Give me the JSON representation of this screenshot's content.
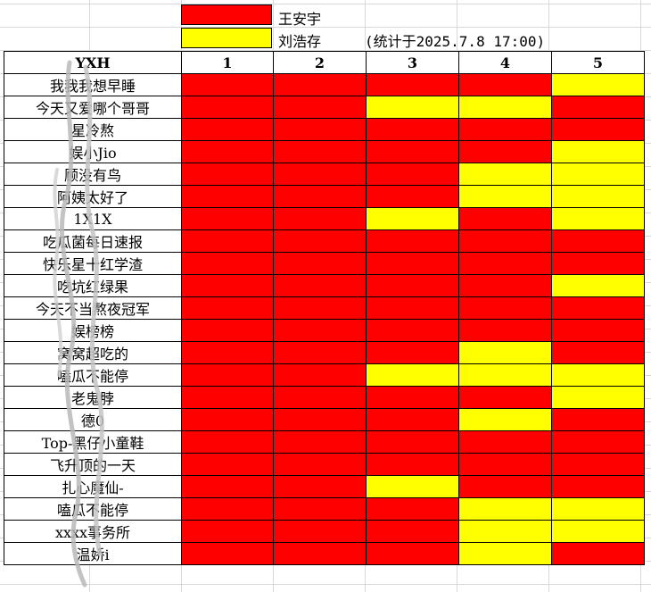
{
  "legend": [
    {
      "name": "王安宇",
      "color": "#ff0000"
    },
    {
      "name": "刘浩存",
      "color": "#ffff00"
    }
  ],
  "note": "(统计于2025.7.8 17:00)",
  "header": {
    "label": "YXH",
    "columns": [
      "1",
      "2",
      "3",
      "4",
      "5"
    ]
  },
  "colors": {
    "R": "#ff0000",
    "Y": "#ffff00"
  },
  "rows": [
    {
      "name": "我我我想早睡",
      "cells": [
        "R",
        "R",
        "R",
        "R",
        "Y"
      ]
    },
    {
      "name": "今天又爱哪个哥哥",
      "cells": [
        "R",
        "R",
        "Y",
        "Y",
        "R"
      ]
    },
    {
      "name": "星冷熬",
      "cells": [
        "R",
        "R",
        "R",
        "R",
        "R"
      ]
    },
    {
      "name": "娱小Jio",
      "cells": [
        "R",
        "R",
        "R",
        "R",
        "Y"
      ]
    },
    {
      "name": "顾没有鸟",
      "cells": [
        "R",
        "R",
        "R",
        "Y",
        "Y"
      ]
    },
    {
      "name": "阿姨太好了",
      "cells": [
        "R",
        "R",
        "R",
        "Y",
        "Y"
      ]
    },
    {
      "name": "1X1X",
      "cells": [
        "R",
        "R",
        "Y",
        "R",
        "Y"
      ]
    },
    {
      "name": "吃瓜菌每日速报",
      "cells": [
        "R",
        "R",
        "R",
        "R",
        "R"
      ]
    },
    {
      "name": "快乐星十红学渣",
      "cells": [
        "R",
        "R",
        "R",
        "R",
        "R"
      ]
    },
    {
      "name": "吃坑红绿果",
      "cells": [
        "R",
        "R",
        "R",
        "R",
        "Y"
      ]
    },
    {
      "name": "今天不当熬夜冠军",
      "cells": [
        "R",
        "R",
        "R",
        "R",
        "R"
      ]
    },
    {
      "name": "娱榜榜",
      "cells": [
        "R",
        "R",
        "R",
        "R",
        "R"
      ]
    },
    {
      "name": "窝窝超吃的",
      "cells": [
        "R",
        "R",
        "R",
        "Y",
        "R"
      ]
    },
    {
      "name": "嗑瓜不能停",
      "cells": [
        "R",
        "R",
        "Y",
        "Y",
        "Y"
      ]
    },
    {
      "name": "老鬼脖",
      "cells": [
        "R",
        "R",
        "R",
        "R",
        "Y"
      ]
    },
    {
      "name": "德0",
      "cells": [
        "R",
        "R",
        "R",
        "Y",
        "R"
      ]
    },
    {
      "name": "Top-黑仔小童鞋",
      "cells": [
        "R",
        "R",
        "R",
        "R",
        "R"
      ]
    },
    {
      "name": "飞升顶的一天",
      "cells": [
        "R",
        "R",
        "R",
        "R",
        "R"
      ]
    },
    {
      "name": "扎心魔仙-",
      "cells": [
        "R",
        "R",
        "Y",
        "R",
        "R"
      ]
    },
    {
      "name": "嗑瓜不能停",
      "cells": [
        "R",
        "R",
        "R",
        "Y",
        "Y"
      ]
    },
    {
      "name": "xxxx事务所",
      "cells": [
        "R",
        "R",
        "R",
        "Y",
        "Y"
      ]
    },
    {
      "name": "温娇i",
      "cells": [
        "R",
        "R",
        "R",
        "Y",
        "R"
      ]
    }
  ]
}
